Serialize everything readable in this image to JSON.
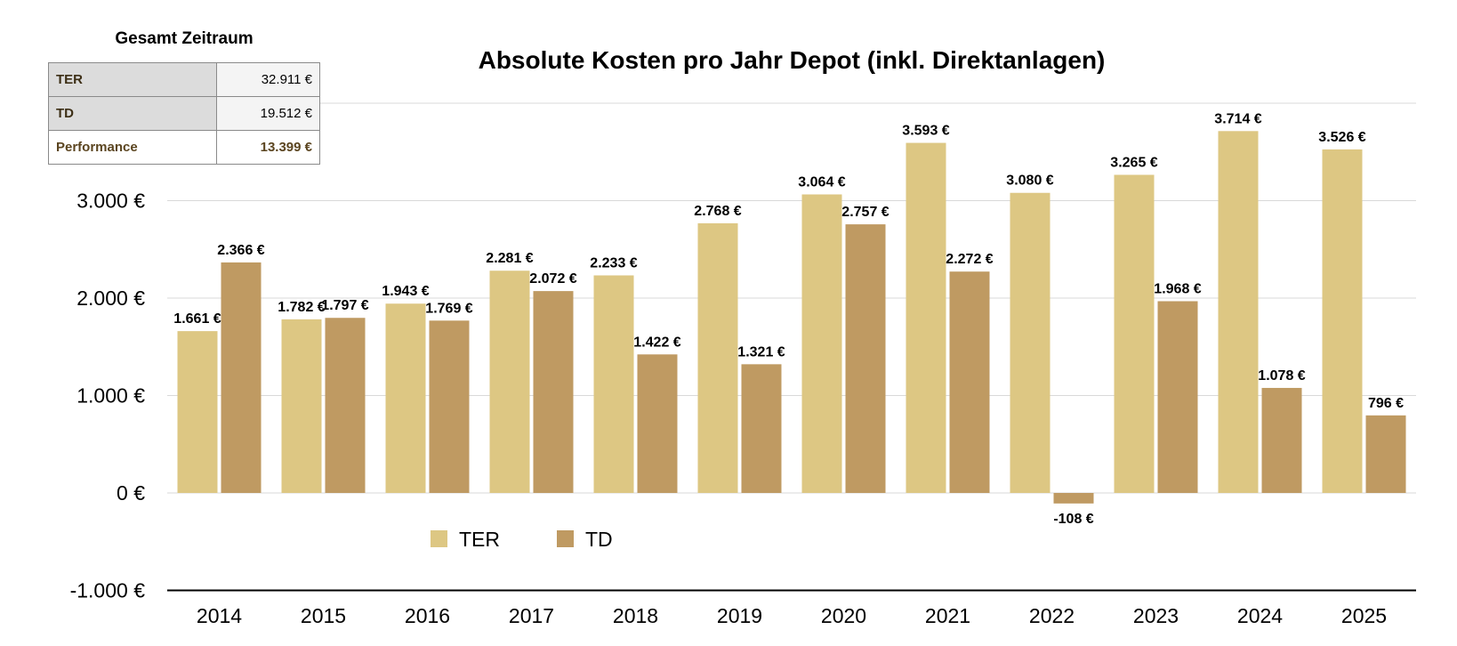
{
  "summary": {
    "caption": "Gesamt Zeitraum",
    "rows": [
      {
        "label": "TER",
        "value": "32.911 €"
      },
      {
        "label": "TD",
        "value": "19.512 €"
      },
      {
        "label": "Performance",
        "value": "13.399 €"
      }
    ]
  },
  "colors": {
    "ter": "#ddc783",
    "td": "#bf9a62",
    "grid": "#d9d9d9",
    "axis": "#000000"
  },
  "chart_data": {
    "type": "bar",
    "title": "Absolute Kosten pro Jahr Depot (inkl. Direktanlagen)",
    "xlabel": "",
    "ylabel": "",
    "categories": [
      "2014",
      "2015",
      "2016",
      "2017",
      "2018",
      "2019",
      "2020",
      "2021",
      "2022",
      "2023",
      "2024",
      "2025"
    ],
    "series": [
      {
        "name": "TER",
        "values": [
          1661,
          1782,
          1943,
          2281,
          2233,
          2768,
          3064,
          3593,
          3080,
          3265,
          3714,
          3526
        ],
        "labels": [
          "1.661 €",
          "1.782 €",
          "1.943 €",
          "2.281 €",
          "2.233 €",
          "2.768 €",
          "3.064 €",
          "3.593 €",
          "3.080 €",
          "3.265 €",
          "3.714 €",
          "3.526 €"
        ]
      },
      {
        "name": "TD",
        "values": [
          2366,
          1797,
          1769,
          2072,
          1422,
          1321,
          2757,
          2272,
          -108,
          1968,
          1078,
          796
        ],
        "labels": [
          "2.366 €",
          "1.797 €",
          "1.769 €",
          "2.072 €",
          "1.422 €",
          "1.321 €",
          "2.757 €",
          "2.272 €",
          "-108 €",
          "1.968 €",
          "1.078 €",
          "796 €"
        ]
      }
    ],
    "ylim": [
      -1000,
      4000
    ],
    "yticks": [
      -1000,
      0,
      1000,
      2000,
      3000
    ],
    "ytick_labels": [
      "-1.000 €",
      "0 €",
      "1.000 €",
      "2.000 €",
      "3.000 €"
    ],
    "grid": true,
    "legend": {
      "position": "bottom-left inside",
      "entries": [
        "TER",
        "TD"
      ]
    }
  }
}
